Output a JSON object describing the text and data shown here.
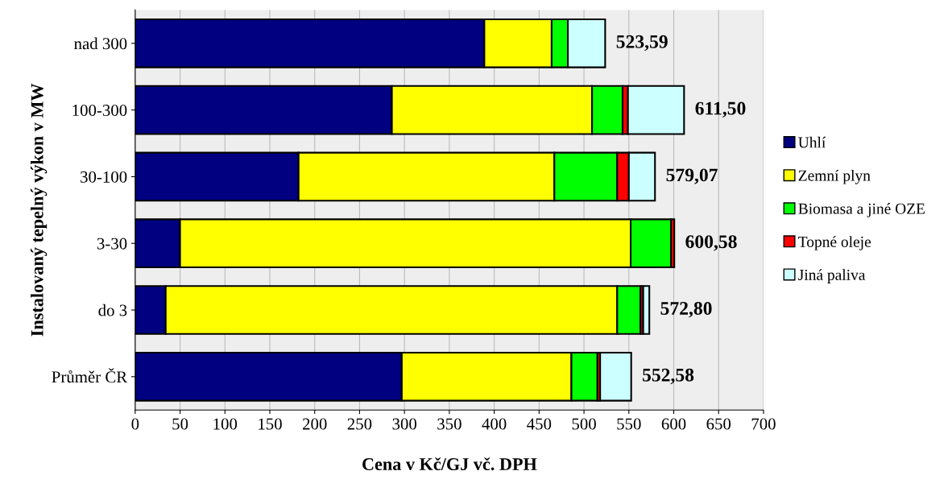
{
  "chart_data": {
    "type": "bar",
    "orientation": "horizontal",
    "stacked": true,
    "categories": [
      "nad 300",
      "100-300",
      "30-100",
      "3-30",
      "do 3",
      "Průměr ČR"
    ],
    "series": [
      {
        "name": "Uhlí",
        "color": "#000080",
        "values": [
          389,
          286,
          182,
          50,
          34,
          297
        ]
      },
      {
        "name": "Zemní plyn",
        "color": "#ffff00",
        "values": [
          75,
          223,
          285,
          502,
          503,
          189
        ]
      },
      {
        "name": "Biomasa a jiné OZE",
        "color": "#00ff00",
        "values": [
          18,
          34,
          70,
          45,
          26,
          29
        ]
      },
      {
        "name": "Topné oleje",
        "color": "#ff0000",
        "values": [
          null,
          6,
          13,
          3.6,
          3,
          3
        ]
      },
      {
        "name": "Jiná paliva",
        "color": "#ccffff",
        "values": [
          41.6,
          62.5,
          29.1,
          null,
          6.8,
          34.6
        ]
      }
    ],
    "totals": [
      "523,59",
      "611,50",
      "579,07",
      "600,58",
      "572,80",
      "552,58"
    ],
    "xlim": [
      0,
      700
    ],
    "xticks": [
      0,
      50,
      100,
      150,
      200,
      250,
      300,
      350,
      400,
      450,
      500,
      550,
      600,
      650,
      700
    ],
    "xlabel": "Cena v Kč/GJ vč. DPH",
    "ylabel": "Instalovaný tepelný výkon v MW",
    "grid": "x",
    "legend": "right"
  }
}
